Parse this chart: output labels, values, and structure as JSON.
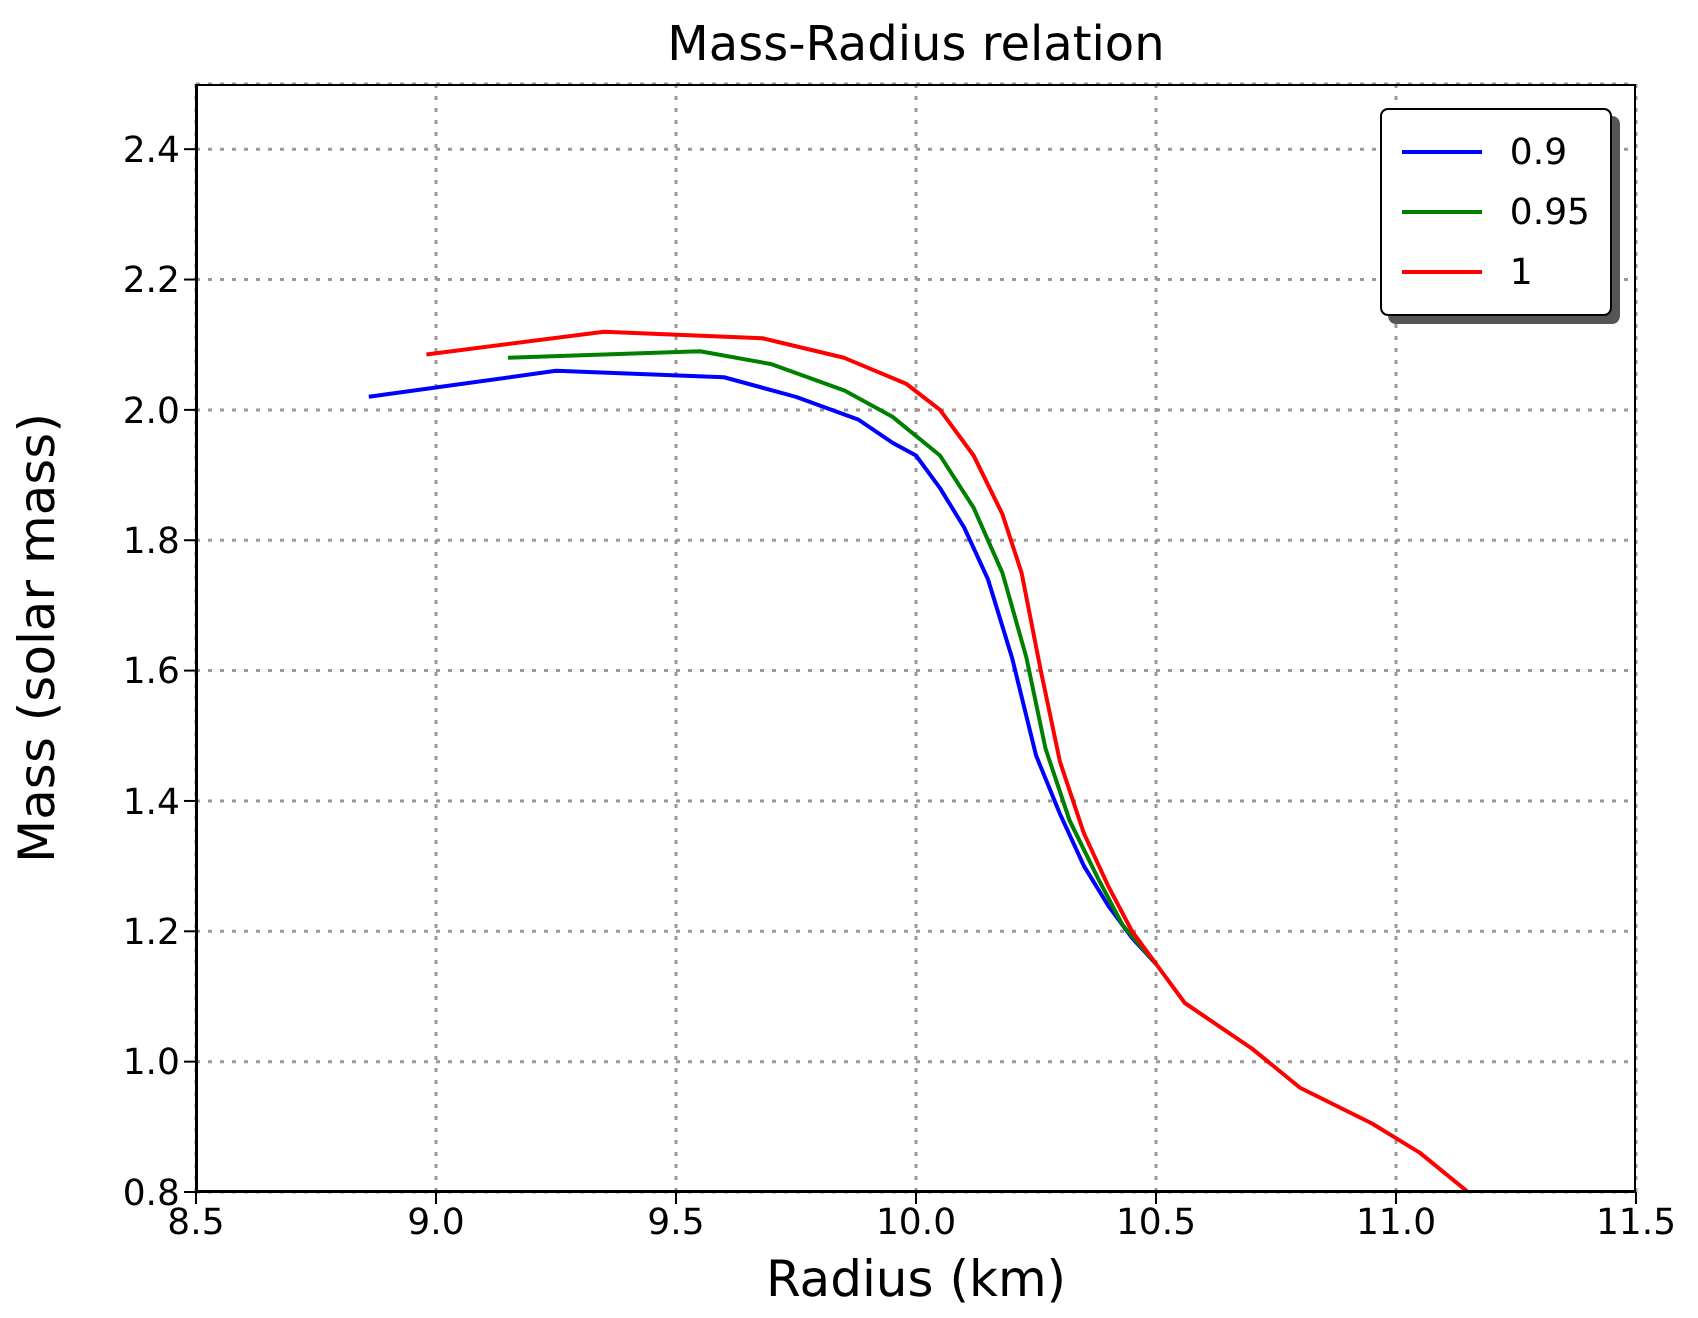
{
  "chart_data": {
    "type": "line",
    "title": "Mass-Radius relation",
    "xlabel": "Radius (km)",
    "ylabel": "Mass (solar mass)",
    "xlim": [
      8.5,
      11.5
    ],
    "xticks": [
      {
        "value": 8.5,
        "label": "8.5"
      },
      {
        "value": 9,
        "label": "9.0"
      },
      {
        "value": 9.5,
        "label": "9.5"
      },
      {
        "value": 10,
        "label": "10.0"
      },
      {
        "value": 10.5,
        "label": "10.5"
      },
      {
        "value": 11,
        "label": "11.0"
      },
      {
        "value": 11.5,
        "label": "11.5"
      }
    ],
    "ylim": [
      0.8,
      2.5
    ],
    "yticks": [
      {
        "value": 0.8,
        "label": "0.8"
      },
      {
        "value": 1,
        "label": "1.0"
      },
      {
        "value": 1.2,
        "label": "1.2"
      },
      {
        "value": 1.4,
        "label": "1.4"
      },
      {
        "value": 1.6,
        "label": "1.6"
      },
      {
        "value": 1.8,
        "label": "1.8"
      },
      {
        "value": 2,
        "label": "2.0"
      },
      {
        "value": 2.2,
        "label": "2.2"
      },
      {
        "value": 2.4,
        "label": "2.4"
      }
    ],
    "grid": true,
    "legend": "top right",
    "marker": "none",
    "line_style": "solid",
    "series": [
      {
        "name": "0.9",
        "color": "#0000ff",
        "x": [
          8.86,
          9.25,
          9.6,
          9.75,
          9.88,
          9.95,
          10.0,
          10.05,
          10.1,
          10.15,
          10.2,
          10.25,
          10.3,
          10.35,
          10.4,
          10.45,
          10.5
        ],
        "values": [
          2.02,
          2.06,
          2.05,
          2.02,
          1.985,
          1.95,
          1.93,
          1.88,
          1.82,
          1.74,
          1.62,
          1.47,
          1.38,
          1.3,
          1.24,
          1.19,
          1.15
        ]
      },
      {
        "name": "0.95",
        "color": "#008000",
        "x": [
          9.15,
          9.55,
          9.7,
          9.85,
          9.95,
          10.05,
          10.12,
          10.18,
          10.23,
          10.27,
          10.32,
          10.38,
          10.43,
          10.5
        ],
        "values": [
          2.08,
          2.09,
          2.07,
          2.03,
          1.99,
          1.93,
          1.85,
          1.75,
          1.62,
          1.48,
          1.37,
          1.28,
          1.21,
          1.15
        ]
      },
      {
        "name": "1",
        "color": "#ff0000",
        "x": [
          8.98,
          9.35,
          9.68,
          9.85,
          9.98,
          10.05,
          10.12,
          10.18,
          10.22,
          10.26,
          10.3,
          10.35,
          10.4,
          10.45,
          10.5,
          10.56,
          10.7,
          10.8,
          10.95,
          11.05,
          11.15
        ],
        "values": [
          2.085,
          2.12,
          2.11,
          2.08,
          2.04,
          2.0,
          1.93,
          1.84,
          1.75,
          1.6,
          1.46,
          1.35,
          1.27,
          1.2,
          1.15,
          1.09,
          1.02,
          0.96,
          0.905,
          0.86,
          0.8
        ]
      }
    ]
  }
}
